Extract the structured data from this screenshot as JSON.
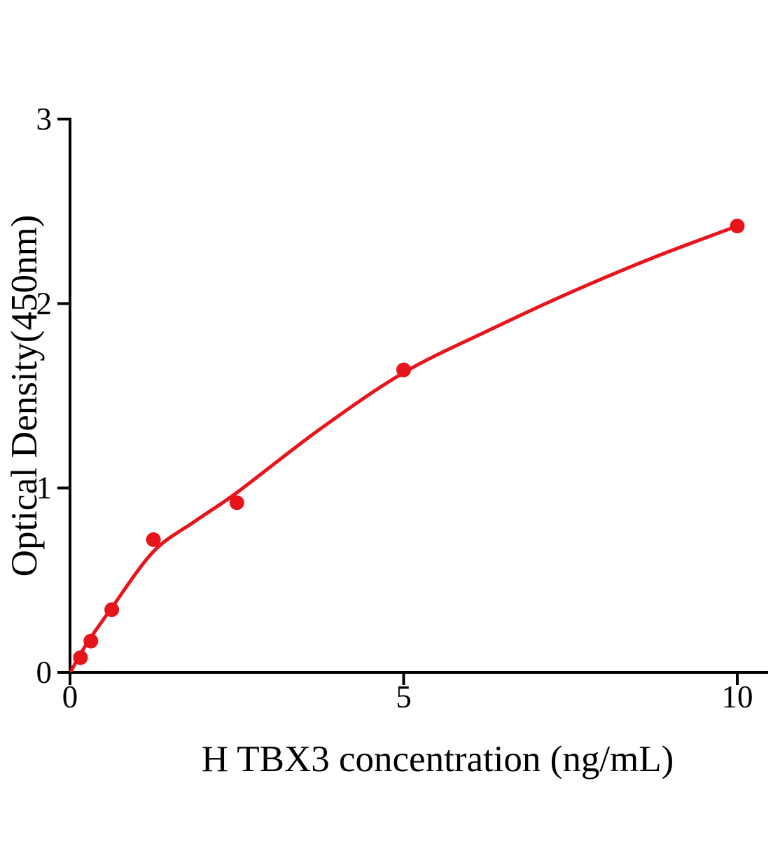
{
  "figure": {
    "background": "#ffffff",
    "title": ""
  },
  "colors": {
    "series_red": "#e8141c",
    "axis_black": "#000000"
  },
  "chart_data": {
    "type": "scatter",
    "title": "",
    "xlabel": "H TBX3 concentration (ng/mL)",
    "ylabel": "Optical Density(450nm)",
    "xlim": [
      0,
      10.45
    ],
    "ylim": [
      0,
      3
    ],
    "x_ticks": [
      "0",
      "5",
      "10"
    ],
    "x_tick_values": [
      0,
      5,
      10
    ],
    "y_ticks": [
      "0",
      "1",
      "2",
      "3"
    ],
    "y_tick_values": [
      0,
      1,
      2,
      3
    ],
    "grid": false,
    "legend_position": "none",
    "series": [
      {
        "name": "standard-points",
        "type": "scatter",
        "marker": "circle",
        "marker_radius_px": 10.5,
        "color": "#e8141c",
        "points": [
          {
            "x": 0.156,
            "y": 0.08
          },
          {
            "x": 0.313,
            "y": 0.17
          },
          {
            "x": 0.625,
            "y": 0.34
          },
          {
            "x": 1.25,
            "y": 0.72
          },
          {
            "x": 2.5,
            "y": 0.92
          },
          {
            "x": 5,
            "y": 1.64
          },
          {
            "x": 10,
            "y": 2.42
          }
        ]
      },
      {
        "name": "fit-curve",
        "type": "line",
        "color": "#e8141c",
        "stroke_width_px": 5,
        "points": [
          {
            "x": 0.02,
            "y": 0.01
          },
          {
            "x": 0.156,
            "y": 0.1
          },
          {
            "x": 0.313,
            "y": 0.19
          },
          {
            "x": 0.625,
            "y": 0.35
          },
          {
            "x": 1.25,
            "y": 0.655
          },
          {
            "x": 1.875,
            "y": 0.82
          },
          {
            "x": 2.5,
            "y": 0.975
          },
          {
            "x": 3.75,
            "y": 1.32
          },
          {
            "x": 5,
            "y": 1.625
          },
          {
            "x": 6.25,
            "y": 1.85
          },
          {
            "x": 7.5,
            "y": 2.06
          },
          {
            "x": 8.75,
            "y": 2.25
          },
          {
            "x": 10,
            "y": 2.42
          }
        ]
      }
    ]
  }
}
